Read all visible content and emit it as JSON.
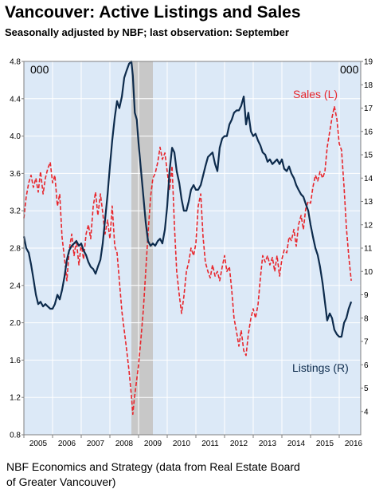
{
  "title": "Vancouver: Active Listings and Sales",
  "subtitle": "Seasonally adjusted by NBF; last observation: September",
  "source": {
    "line1": "NBF Economics and Strategy  (data from Real Estate Board",
    "line2": "of Greater Vancouver)"
  },
  "colors": {
    "plot_bg": "#dce9f7",
    "recession": "#c8c8c8",
    "sales": "#e8262c",
    "listings": "#0d2b4c"
  },
  "chart_data": {
    "type": "line",
    "left_unit": "000",
    "right_unit": "000",
    "x_range": [
      2005.0,
      2016.75
    ],
    "x_ticks": [
      "2005",
      "2006",
      "2007",
      "2008",
      "2009",
      "2010",
      "2011",
      "2012",
      "2013",
      "2014",
      "2015",
      "2016"
    ],
    "y_left_range": [
      0.8,
      4.8
    ],
    "y_left_ticks": [
      "0.8",
      "1.2",
      "1.6",
      "2.0",
      "2.4",
      "2.8",
      "3.2",
      "3.6",
      "4.0",
      "4.4",
      "4.8"
    ],
    "y_right_range": [
      3,
      19
    ],
    "y_right_ticks": [
      "4",
      "5",
      "6",
      "7",
      "8",
      "9",
      "10",
      "11",
      "12",
      "13",
      "14",
      "15",
      "16",
      "17",
      "18",
      "19"
    ],
    "grid": true,
    "shaded_period": [
      2008.75,
      2009.5
    ],
    "annotations": [
      {
        "text": "Sales (L)",
        "series": "sales"
      },
      {
        "text": "Listings (R)",
        "series": "listings"
      }
    ],
    "series": [
      {
        "name": "Sales (L)",
        "axis": "left",
        "style": "dashed",
        "points": [
          [
            2005.0,
            3.12
          ],
          [
            2005.08,
            3.35
          ],
          [
            2005.17,
            3.5
          ],
          [
            2005.25,
            3.58
          ],
          [
            2005.33,
            3.45
          ],
          [
            2005.42,
            3.55
          ],
          [
            2005.5,
            3.4
          ],
          [
            2005.58,
            3.62
          ],
          [
            2005.67,
            3.38
          ],
          [
            2005.75,
            3.55
          ],
          [
            2005.83,
            3.65
          ],
          [
            2005.92,
            3.72
          ],
          [
            2006.0,
            3.5
          ],
          [
            2006.08,
            3.58
          ],
          [
            2006.17,
            3.25
          ],
          [
            2006.25,
            3.38
          ],
          [
            2006.33,
            2.92
          ],
          [
            2006.42,
            2.68
          ],
          [
            2006.5,
            2.45
          ],
          [
            2006.58,
            2.78
          ],
          [
            2006.67,
            2.95
          ],
          [
            2006.75,
            2.72
          ],
          [
            2006.83,
            2.88
          ],
          [
            2006.92,
            2.62
          ],
          [
            2007.0,
            2.85
          ],
          [
            2007.08,
            2.68
          ],
          [
            2007.17,
            2.95
          ],
          [
            2007.25,
            3.05
          ],
          [
            2007.33,
            2.9
          ],
          [
            2007.42,
            3.25
          ],
          [
            2007.5,
            3.4
          ],
          [
            2007.58,
            3.15
          ],
          [
            2007.67,
            3.38
          ],
          [
            2007.75,
            3.18
          ],
          [
            2007.83,
            2.95
          ],
          [
            2007.92,
            3.1
          ],
          [
            2008.0,
            2.9
          ],
          [
            2008.08,
            3.25
          ],
          [
            2008.17,
            2.82
          ],
          [
            2008.25,
            2.75
          ],
          [
            2008.33,
            2.45
          ],
          [
            2008.42,
            2.12
          ],
          [
            2008.5,
            1.92
          ],
          [
            2008.58,
            1.72
          ],
          [
            2008.67,
            1.48
          ],
          [
            2008.75,
            1.22
          ],
          [
            2008.8,
            1.02
          ],
          [
            2008.85,
            1.18
          ],
          [
            2008.92,
            1.35
          ],
          [
            2009.0,
            1.55
          ],
          [
            2009.08,
            1.82
          ],
          [
            2009.17,
            2.15
          ],
          [
            2009.25,
            2.55
          ],
          [
            2009.33,
            2.95
          ],
          [
            2009.42,
            3.35
          ],
          [
            2009.5,
            3.55
          ],
          [
            2009.58,
            3.6
          ],
          [
            2009.67,
            3.72
          ],
          [
            2009.75,
            3.88
          ],
          [
            2009.83,
            3.75
          ],
          [
            2009.92,
            3.82
          ],
          [
            2010.0,
            3.62
          ],
          [
            2010.08,
            3.42
          ],
          [
            2010.17,
            3.68
          ],
          [
            2010.25,
            3.05
          ],
          [
            2010.33,
            2.55
          ],
          [
            2010.42,
            2.3
          ],
          [
            2010.5,
            2.1
          ],
          [
            2010.58,
            2.28
          ],
          [
            2010.67,
            2.55
          ],
          [
            2010.75,
            2.65
          ],
          [
            2010.83,
            2.8
          ],
          [
            2010.92,
            2.72
          ],
          [
            2011.0,
            2.85
          ],
          [
            2011.08,
            3.25
          ],
          [
            2011.17,
            3.38
          ],
          [
            2011.25,
            2.92
          ],
          [
            2011.33,
            2.65
          ],
          [
            2011.42,
            2.55
          ],
          [
            2011.5,
            2.48
          ],
          [
            2011.58,
            2.62
          ],
          [
            2011.67,
            2.5
          ],
          [
            2011.75,
            2.55
          ],
          [
            2011.83,
            2.45
          ],
          [
            2011.92,
            2.6
          ],
          [
            2012.0,
            2.72
          ],
          [
            2012.08,
            2.55
          ],
          [
            2012.17,
            2.6
          ],
          [
            2012.25,
            2.35
          ],
          [
            2012.33,
            2.05
          ],
          [
            2012.42,
            1.9
          ],
          [
            2012.5,
            1.75
          ],
          [
            2012.58,
            1.92
          ],
          [
            2012.67,
            1.7
          ],
          [
            2012.75,
            1.65
          ],
          [
            2012.83,
            1.88
          ],
          [
            2012.92,
            2.05
          ],
          [
            2013.0,
            2.15
          ],
          [
            2013.08,
            2.05
          ],
          [
            2013.17,
            2.2
          ],
          [
            2013.25,
            2.48
          ],
          [
            2013.33,
            2.72
          ],
          [
            2013.42,
            2.65
          ],
          [
            2013.5,
            2.72
          ],
          [
            2013.58,
            2.62
          ],
          [
            2013.67,
            2.7
          ],
          [
            2013.75,
            2.55
          ],
          [
            2013.83,
            2.72
          ],
          [
            2013.92,
            2.5
          ],
          [
            2014.0,
            2.68
          ],
          [
            2014.08,
            2.78
          ],
          [
            2014.17,
            2.75
          ],
          [
            2014.25,
            2.92
          ],
          [
            2014.33,
            2.88
          ],
          [
            2014.42,
            3.0
          ],
          [
            2014.5,
            2.82
          ],
          [
            2014.58,
            3.05
          ],
          [
            2014.67,
            3.15
          ],
          [
            2014.75,
            3.0
          ],
          [
            2014.83,
            3.22
          ],
          [
            2014.92,
            3.3
          ],
          [
            2015.0,
            3.28
          ],
          [
            2015.08,
            3.45
          ],
          [
            2015.17,
            3.58
          ],
          [
            2015.25,
            3.52
          ],
          [
            2015.33,
            3.62
          ],
          [
            2015.42,
            3.55
          ],
          [
            2015.5,
            3.62
          ],
          [
            2015.58,
            3.88
          ],
          [
            2015.67,
            4.05
          ],
          [
            2015.75,
            4.2
          ],
          [
            2015.83,
            4.32
          ],
          [
            2015.92,
            4.18
          ],
          [
            2016.0,
            3.92
          ],
          [
            2016.08,
            3.85
          ],
          [
            2016.17,
            3.45
          ],
          [
            2016.25,
            3.02
          ],
          [
            2016.33,
            2.72
          ],
          [
            2016.42,
            2.45
          ]
        ]
      },
      {
        "name": "Listings (R)",
        "axis": "right",
        "style": "solid",
        "points": [
          [
            2005.0,
            11.5
          ],
          [
            2005.08,
            11.0
          ],
          [
            2005.17,
            10.8
          ],
          [
            2005.25,
            10.3
          ],
          [
            2005.33,
            9.7
          ],
          [
            2005.42,
            9.0
          ],
          [
            2005.5,
            8.6
          ],
          [
            2005.58,
            8.7
          ],
          [
            2005.67,
            8.5
          ],
          [
            2005.75,
            8.6
          ],
          [
            2005.83,
            8.5
          ],
          [
            2005.92,
            8.4
          ],
          [
            2006.0,
            8.4
          ],
          [
            2006.08,
            8.6
          ],
          [
            2006.17,
            9.0
          ],
          [
            2006.25,
            8.8
          ],
          [
            2006.33,
            9.2
          ],
          [
            2006.42,
            9.8
          ],
          [
            2006.5,
            10.5
          ],
          [
            2006.58,
            10.9
          ],
          [
            2006.67,
            11.1
          ],
          [
            2006.75,
            11.2
          ],
          [
            2006.83,
            11.3
          ],
          [
            2006.92,
            11.1
          ],
          [
            2007.0,
            11.2
          ],
          [
            2007.08,
            10.9
          ],
          [
            2007.17,
            10.7
          ],
          [
            2007.25,
            10.4
          ],
          [
            2007.33,
            10.2
          ],
          [
            2007.42,
            10.1
          ],
          [
            2007.5,
            9.9
          ],
          [
            2007.58,
            10.2
          ],
          [
            2007.67,
            10.5
          ],
          [
            2007.75,
            11.2
          ],
          [
            2007.83,
            12.2
          ],
          [
            2007.92,
            13.3
          ],
          [
            2008.0,
            14.5
          ],
          [
            2008.08,
            15.6
          ],
          [
            2008.17,
            16.6
          ],
          [
            2008.25,
            17.3
          ],
          [
            2008.33,
            17.0
          ],
          [
            2008.42,
            17.5
          ],
          [
            2008.5,
            18.3
          ],
          [
            2008.58,
            18.6
          ],
          [
            2008.67,
            18.9
          ],
          [
            2008.75,
            19.0
          ],
          [
            2008.8,
            18.4
          ],
          [
            2008.87,
            16.8
          ],
          [
            2008.94,
            16.5
          ],
          [
            2009.0,
            15.5
          ],
          [
            2009.08,
            14.4
          ],
          [
            2009.17,
            13.2
          ],
          [
            2009.25,
            12.1
          ],
          [
            2009.33,
            11.3
          ],
          [
            2009.42,
            11.1
          ],
          [
            2009.5,
            11.2
          ],
          [
            2009.58,
            11.1
          ],
          [
            2009.67,
            11.3
          ],
          [
            2009.75,
            11.4
          ],
          [
            2009.83,
            11.2
          ],
          [
            2009.92,
            11.8
          ],
          [
            2010.0,
            12.8
          ],
          [
            2010.08,
            14.3
          ],
          [
            2010.17,
            15.3
          ],
          [
            2010.25,
            15.1
          ],
          [
            2010.33,
            14.3
          ],
          [
            2010.42,
            13.8
          ],
          [
            2010.5,
            13.1
          ],
          [
            2010.58,
            12.6
          ],
          [
            2010.67,
            12.6
          ],
          [
            2010.75,
            13.0
          ],
          [
            2010.83,
            13.5
          ],
          [
            2010.92,
            13.7
          ],
          [
            2011.0,
            13.5
          ],
          [
            2011.08,
            13.5
          ],
          [
            2011.17,
            13.7
          ],
          [
            2011.25,
            14.1
          ],
          [
            2011.33,
            14.5
          ],
          [
            2011.42,
            14.9
          ],
          [
            2011.5,
            15.0
          ],
          [
            2011.58,
            15.1
          ],
          [
            2011.67,
            14.6
          ],
          [
            2011.75,
            14.3
          ],
          [
            2011.83,
            15.3
          ],
          [
            2011.92,
            15.7
          ],
          [
            2012.0,
            15.8
          ],
          [
            2012.08,
            15.8
          ],
          [
            2012.17,
            16.3
          ],
          [
            2012.25,
            16.5
          ],
          [
            2012.33,
            16.8
          ],
          [
            2012.42,
            16.9
          ],
          [
            2012.5,
            16.9
          ],
          [
            2012.58,
            17.1
          ],
          [
            2012.67,
            17.5
          ],
          [
            2012.75,
            16.3
          ],
          [
            2012.83,
            16.8
          ],
          [
            2012.92,
            16.0
          ],
          [
            2013.0,
            15.8
          ],
          [
            2013.08,
            15.9
          ],
          [
            2013.17,
            15.6
          ],
          [
            2013.25,
            15.4
          ],
          [
            2013.33,
            15.1
          ],
          [
            2013.42,
            15.0
          ],
          [
            2013.5,
            14.7
          ],
          [
            2013.58,
            14.8
          ],
          [
            2013.67,
            14.6
          ],
          [
            2013.75,
            14.7
          ],
          [
            2013.83,
            14.8
          ],
          [
            2013.92,
            14.6
          ],
          [
            2014.0,
            14.8
          ],
          [
            2014.08,
            14.4
          ],
          [
            2014.17,
            14.3
          ],
          [
            2014.25,
            14.5
          ],
          [
            2014.33,
            14.2
          ],
          [
            2014.42,
            14.0
          ],
          [
            2014.5,
            13.7
          ],
          [
            2014.58,
            13.5
          ],
          [
            2014.67,
            13.3
          ],
          [
            2014.75,
            13.2
          ],
          [
            2014.83,
            12.9
          ],
          [
            2014.92,
            12.6
          ],
          [
            2015.0,
            12.0
          ],
          [
            2015.08,
            11.5
          ],
          [
            2015.17,
            11.0
          ],
          [
            2015.25,
            10.7
          ],
          [
            2015.33,
            10.2
          ],
          [
            2015.42,
            9.5
          ],
          [
            2015.5,
            8.7
          ],
          [
            2015.58,
            7.9
          ],
          [
            2015.67,
            8.2
          ],
          [
            2015.75,
            8.0
          ],
          [
            2015.83,
            7.5
          ],
          [
            2015.92,
            7.3
          ],
          [
            2016.0,
            7.2
          ],
          [
            2016.08,
            7.2
          ],
          [
            2016.17,
            7.8
          ],
          [
            2016.25,
            8.0
          ],
          [
            2016.33,
            8.4
          ],
          [
            2016.42,
            8.7
          ]
        ]
      }
    ]
  }
}
